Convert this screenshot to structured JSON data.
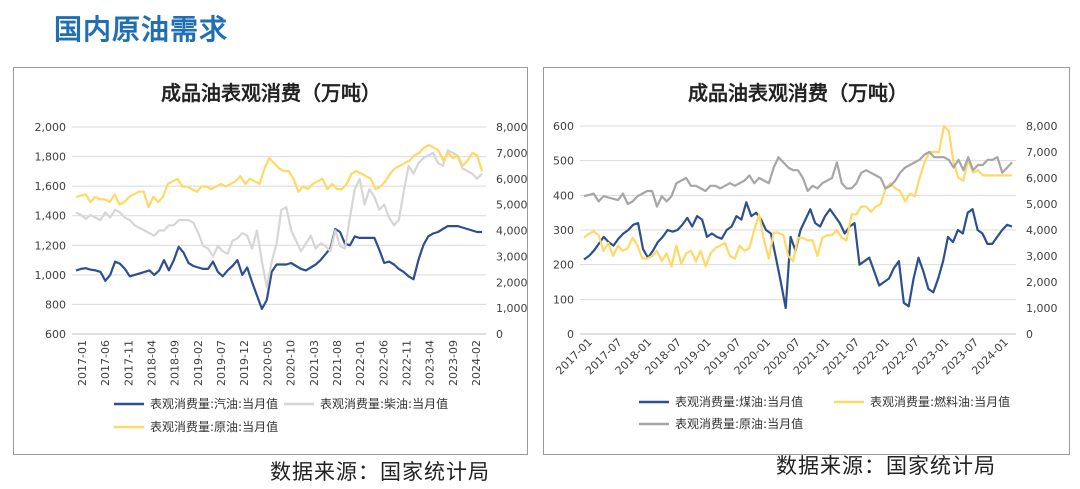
{
  "page": {
    "title": "国内原油需求",
    "source_left": "数据来源：国家统计局",
    "source_right": "数据来源：国家统计局"
  },
  "colors": {
    "title": "#1f6fb2",
    "navy": "#2e4f8f",
    "lightgray": "#d6d6d6",
    "yellow": "#ffd966",
    "gray": "#a6a6a6"
  },
  "chart_data": [
    {
      "type": "line",
      "title": "成品油表观消费（万吨）",
      "grid": true,
      "legend_position": "bottom",
      "x_ticks": [
        "2017-01",
        "2017-06",
        "2017-11",
        "2018-04",
        "2018-09",
        "2019-02",
        "2019-07",
        "2019-12",
        "2020-05",
        "2020-10",
        "2021-03",
        "2021-08",
        "2022-01",
        "2022-06",
        "2022-11",
        "2023-04",
        "2023-09",
        "2024-02"
      ],
      "y_left": {
        "min": 600,
        "max": 2000,
        "ticks": [
          "600",
          "800",
          "1,000",
          "1,200",
          "1,400",
          "1,600",
          "1,800",
          "2,000"
        ]
      },
      "y_right": {
        "min": 0,
        "max": 8000,
        "ticks": [
          "0",
          "1,000",
          "2,000",
          "3,000",
          "4,000",
          "5,000",
          "6,000",
          "7,000",
          "8,000"
        ]
      },
      "series": [
        {
          "name": "表观消费量:汽油:当月值",
          "axis": "left",
          "color": "#2e4f8f",
          "values": [
            1030,
            1040,
            1045,
            1035,
            1030,
            1020,
            960,
            1000,
            1090,
            1075,
            1040,
            990,
            1000,
            1010,
            1020,
            1030,
            1000,
            1030,
            1100,
            1030,
            1100,
            1190,
            1150,
            1080,
            1060,
            1050,
            1040,
            1040,
            1090,
            1020,
            990,
            1030,
            1060,
            1100,
            1000,
            1050,
            950,
            860,
            770,
            830,
            1020,
            1070,
            1070,
            1070,
            1080,
            1060,
            1040,
            1030,
            1050,
            1070,
            1100,
            1140,
            1180,
            1310,
            1290,
            1210,
            1200,
            1260,
            1250,
            1250,
            1250,
            1250,
            1170,
            1080,
            1090,
            1070,
            1040,
            1020,
            990,
            970,
            1100,
            1200,
            1260,
            1280,
            1290,
            1310,
            1330,
            1330,
            1330,
            1320,
            1310,
            1300,
            1290,
            1290
          ]
        },
        {
          "name": "表观消费量:柴油:当月值",
          "axis": "right",
          "color": "#d6d6d6",
          "values": [
            4700,
            4600,
            4450,
            4600,
            4500,
            4400,
            4700,
            4500,
            4800,
            4700,
            4500,
            4400,
            4200,
            4100,
            4000,
            3900,
            3800,
            4000,
            4000,
            4200,
            4200,
            4400,
            4400,
            4400,
            4300,
            3900,
            3400,
            3300,
            3000,
            3400,
            3200,
            3100,
            3600,
            3700,
            3900,
            3800,
            3300,
            4000,
            2800,
            1800,
            2800,
            3500,
            4800,
            4900,
            4000,
            3600,
            3200,
            3500,
            3800,
            3300,
            3500,
            3400,
            3200,
            4000,
            3400,
            3300,
            4500,
            5600,
            6000,
            5000,
            5600,
            5300,
            4800,
            5000,
            4500,
            4200,
            4400,
            5500,
            6500,
            6200,
            6600,
            6800,
            6900,
            7000,
            6600,
            6500,
            7100,
            7000,
            6900,
            6400,
            6300,
            6200,
            6000,
            6200
          ]
        },
        {
          "name": "表观消费量:原油:当月值",
          "axis": "right",
          "color": "#ffd966",
          "values": [
            5300,
            5350,
            5400,
            5100,
            5300,
            5200,
            5200,
            5100,
            5400,
            5000,
            5100,
            5300,
            5400,
            5500,
            5500,
            4900,
            5300,
            5100,
            5300,
            5800,
            5900,
            6000,
            5700,
            5700,
            5600,
            5500,
            5700,
            5700,
            5600,
            5700,
            5800,
            5700,
            5800,
            5900,
            6100,
            5800,
            6000,
            5900,
            5800,
            6400,
            6800,
            6600,
            6400,
            6300,
            6300,
            6000,
            5500,
            5700,
            5600,
            5800,
            5900,
            6000,
            5600,
            5800,
            5600,
            5600,
            5800,
            6200,
            6300,
            6200,
            6100,
            6000,
            5600,
            5700,
            5900,
            6200,
            6400,
            6500,
            6600,
            6700,
            6900,
            7000,
            7200,
            7300,
            7200,
            7100,
            6700,
            7000,
            6800,
            6900,
            6500,
            6700,
            7000,
            6900,
            6300
          ]
        }
      ]
    },
    {
      "type": "line",
      "title": "成品油表观消费（万吨）",
      "grid": true,
      "legend_position": "bottom",
      "x_ticks": [
        "2017-01",
        "2017-07",
        "2018-01",
        "2018-07",
        "2019-01",
        "2019-07",
        "2020-01",
        "2020-07",
        "2021-01",
        "2021-07",
        "2022-01",
        "2022-07",
        "2023-01",
        "2023-07",
        "2024-01"
      ],
      "y_left": {
        "min": 0,
        "max": 600,
        "ticks": [
          "0",
          "100",
          "200",
          "300",
          "400",
          "500",
          "600"
        ]
      },
      "y_right": {
        "min": 0,
        "max": 8000,
        "ticks": [
          "0",
          "1,000",
          "2,000",
          "3,000",
          "4,000",
          "5,000",
          "6,000",
          "7,000",
          "8,000"
        ]
      },
      "series": [
        {
          "name": "表观消费量:煤油:当月值",
          "axis": "left",
          "color": "#2e4f8f",
          "values": [
            215,
            225,
            240,
            260,
            280,
            265,
            255,
            275,
            290,
            300,
            315,
            320,
            245,
            220,
            240,
            265,
            280,
            300,
            295,
            300,
            315,
            335,
            310,
            340,
            330,
            280,
            290,
            280,
            275,
            300,
            310,
            340,
            330,
            380,
            340,
            350,
            330,
            300,
            290,
            220,
            150,
            75,
            280,
            240,
            300,
            330,
            360,
            320,
            310,
            340,
            360,
            340,
            320,
            290,
            310,
            320,
            200,
            210,
            220,
            180,
            140,
            150,
            160,
            190,
            210,
            90,
            80,
            160,
            220,
            180,
            130,
            120,
            160,
            210,
            280,
            265,
            300,
            290,
            350,
            360,
            300,
            290,
            260,
            260,
            280,
            300,
            315,
            310
          ]
        },
        {
          "name": "表观消费量:燃料油:当月值",
          "axis": "right",
          "color": "#ffd966",
          "values": [
            3700,
            3850,
            3950,
            3800,
            3200,
            3500,
            3000,
            3400,
            3200,
            3300,
            3700,
            3400,
            2900,
            2900,
            3000,
            3200,
            2800,
            3100,
            2600,
            3400,
            2700,
            3100,
            3200,
            2800,
            3200,
            2600,
            3100,
            3300,
            3400,
            3500,
            3000,
            2900,
            3400,
            3200,
            3300,
            4000,
            4600,
            3600,
            2900,
            3900,
            3900,
            3800,
            3000,
            2800,
            3700,
            3700,
            3600,
            3600,
            3000,
            3700,
            3800,
            3800,
            4000,
            3700,
            3600,
            4600,
            4600,
            4900,
            4900,
            4700,
            4900,
            5000,
            5600,
            5800,
            5600,
            5500,
            5100,
            5400,
            5300,
            6000,
            6600,
            7000,
            7000,
            7000,
            8000,
            7800,
            6600,
            6000,
            5900,
            6700,
            6200,
            6300,
            6100,
            6100,
            6100,
            6100,
            6100,
            6100,
            6100
          ]
        },
        {
          "name": "表观消费量:原油:当月值",
          "axis": "right",
          "color": "#a6a6a6",
          "values": [
            5300,
            5350,
            5400,
            5100,
            5300,
            5250,
            5200,
            5150,
            5400,
            5000,
            5100,
            5300,
            5400,
            5500,
            5500,
            4900,
            5300,
            5100,
            5300,
            5800,
            5900,
            6000,
            5700,
            5700,
            5600,
            5500,
            5700,
            5700,
            5600,
            5700,
            5800,
            5700,
            5800,
            5900,
            6100,
            5800,
            6000,
            5900,
            5800,
            6400,
            6800,
            6600,
            6400,
            6300,
            6300,
            6000,
            5500,
            5700,
            5600,
            5800,
            5900,
            6000,
            6600,
            5800,
            5600,
            5600,
            5800,
            6200,
            6300,
            6200,
            6100,
            6000,
            5600,
            5700,
            5900,
            6200,
            6400,
            6500,
            6600,
            6700,
            6900,
            7000,
            6800,
            6800,
            6800,
            6700,
            6400,
            6700,
            6300,
            6800,
            6300,
            6500,
            6500,
            6700,
            6700,
            6800,
            6200,
            6400,
            6600
          ]
        }
      ]
    }
  ]
}
